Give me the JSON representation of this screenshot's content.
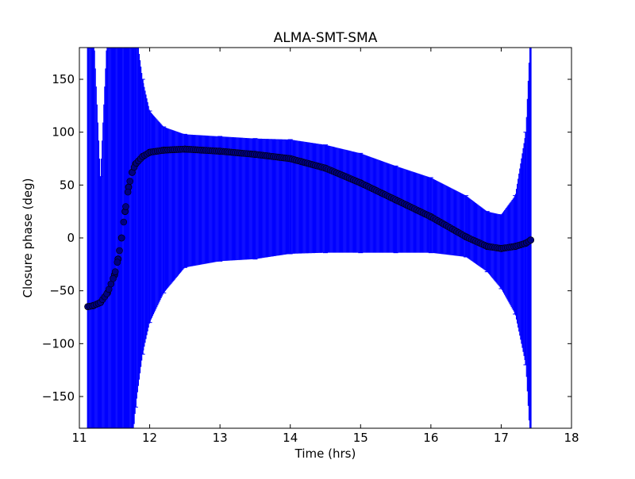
{
  "chart_data": {
    "type": "scatter",
    "title": "ALMA-SMT-SMA",
    "xlabel": "Time (hrs)",
    "ylabel": "Closure phase (deg)",
    "xlim": [
      11,
      18
    ],
    "ylim": [
      -180,
      180
    ],
    "xticks": [
      11,
      12,
      13,
      14,
      15,
      16,
      17,
      18
    ],
    "xtick_labels": [
      "11",
      "12",
      "13",
      "14",
      "15",
      "16",
      "17",
      "18"
    ],
    "yticks": [
      -150,
      -100,
      -50,
      0,
      50,
      100,
      150
    ],
    "ytick_labels": [
      "−150",
      "−100",
      "−50",
      "0",
      "50",
      "100",
      "150"
    ],
    "grid": false,
    "legend": "none",
    "series": [
      {
        "marker": "circle",
        "color": "#000080",
        "errorbar_color": "#0000ff",
        "x": [
          11.12,
          11.2,
          11.3,
          11.4,
          11.5,
          11.55,
          11.6,
          11.65,
          11.7,
          11.75,
          11.8,
          11.9,
          12.0,
          12.2,
          12.5,
          13.0,
          13.5,
          14.0,
          14.5,
          15.0,
          15.5,
          16.0,
          16.5,
          16.8,
          17.0,
          17.2,
          17.35,
          17.42
        ],
        "y": [
          -65,
          -64,
          -61,
          -52,
          -35,
          -20,
          0,
          25,
          48,
          62,
          70,
          77,
          81,
          83,
          84,
          82,
          79,
          75,
          66,
          52,
          36,
          20,
          1,
          -8,
          -10,
          -8,
          -5,
          -2
        ],
        "err_low": [
          -200,
          -200,
          -200,
          -200,
          -200,
          -200,
          -200,
          -200,
          -200,
          -200,
          -160,
          -110,
          -80,
          -52,
          -28,
          -22,
          -20,
          -15,
          -14,
          -14,
          -14,
          -14,
          -18,
          -32,
          -48,
          -72,
          -120,
          -200
        ],
        "err_high": [
          200,
          200,
          58,
          200,
          200,
          200,
          200,
          200,
          200,
          200,
          200,
          150,
          120,
          105,
          98,
          96,
          94,
          93,
          88,
          80,
          68,
          57,
          40,
          25,
          22,
          40,
          100,
          200
        ]
      }
    ]
  }
}
